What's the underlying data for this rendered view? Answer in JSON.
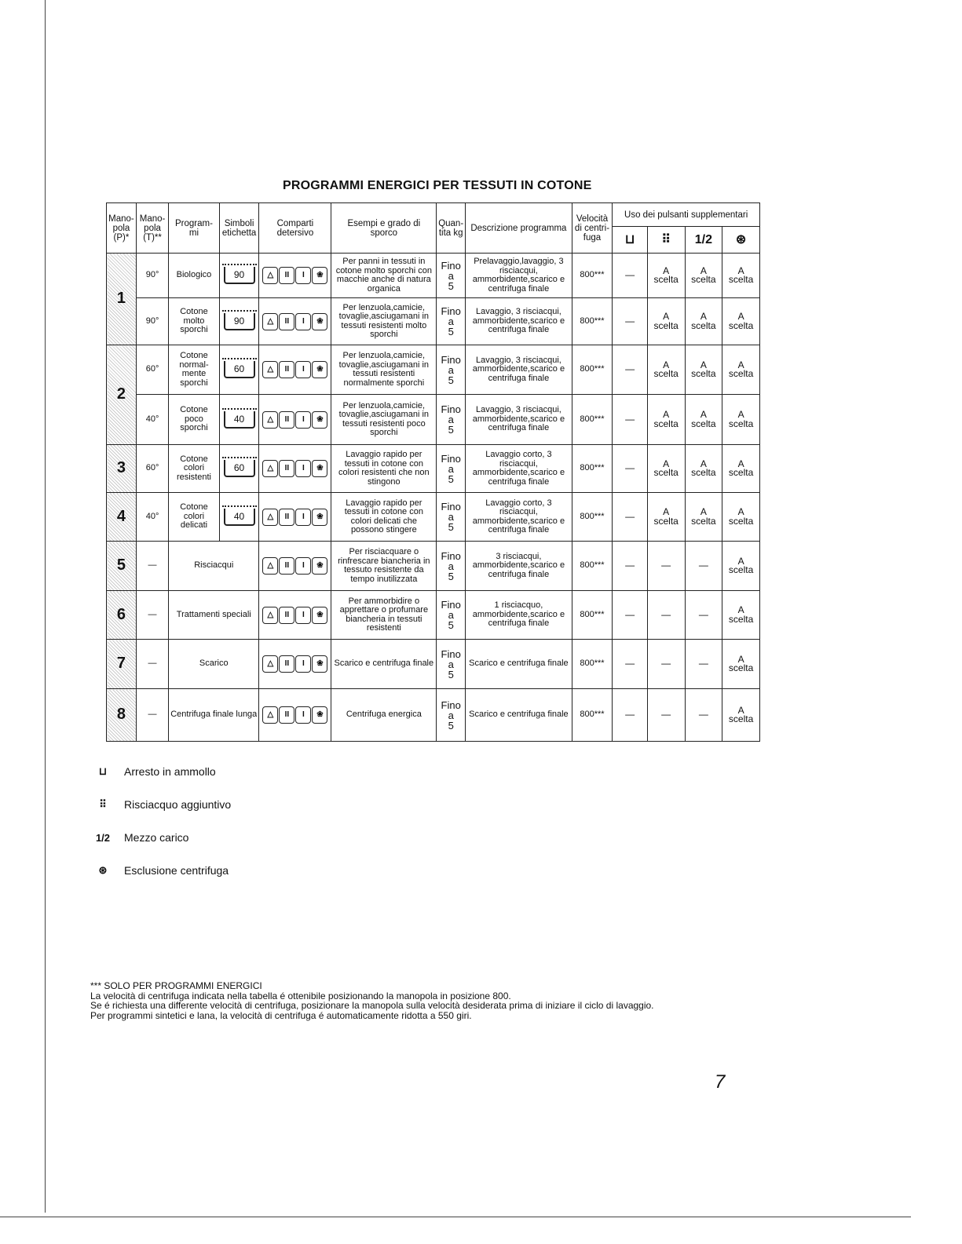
{
  "title": "PROGRAMMI ENERGICI PER TESSUTI IN COTONE",
  "headers": {
    "p": "Mano-pola (P)*",
    "t": "Mano-pola (T)**",
    "prog": "Program-mi",
    "simboli": "Simboli etichetta",
    "comparti": "Comparti detersivo",
    "esempi": "Esempi e grado di sporco",
    "quantita": "Quan-tita kg",
    "descrizione": "Descrizione programma",
    "velocita": "Velocità di centri-fuga",
    "pulsanti": "Uso dei pulsanti supplementari",
    "buttons": [
      "tub-icon",
      "extra-rinse-icon",
      "half-load-icon",
      "no-spin-icon"
    ],
    "button_glyphs": [
      "⊔",
      "⠿",
      "1/2",
      "⊛"
    ]
  },
  "compartments": [
    "△",
    "II",
    "I",
    "❀"
  ],
  "rows": [
    {
      "p": "1",
      "p_span": 2,
      "t": "90°",
      "prog": "Biologico",
      "sym": "90",
      "esempi": "Per panni in tessuti in cotone molto sporchi con macchie anche di natura organica",
      "qty": "Fino a 5",
      "desc": "Prelavaggio,lavaggio, 3 risciacqui, ammorbidente,scarico e centrifuga finale",
      "vel": "800***",
      "btn": [
        "—",
        "A scelta",
        "A scelta",
        "A scelta"
      ]
    },
    {
      "t": "90°",
      "prog": "Cotone molto sporchi",
      "sym": "90",
      "esempi": "Per lenzuola,camicie, tovaglie,asciugamani in tessuti resistenti molto sporchi",
      "qty": "Fino a 5",
      "desc": "Lavaggio, 3 risciacqui, ammorbidente,scarico e centrifuga finale",
      "vel": "800***",
      "btn": [
        "—",
        "A scelta",
        "A scelta",
        "A scelta"
      ]
    },
    {
      "p": "2",
      "p_span": 2,
      "t": "60°",
      "prog": "Cotone normal-mente sporchi",
      "sym": "60",
      "esempi": "Per lenzuola,camicie, tovaglie,asciugamani in tessuti resistenti normalmente sporchi",
      "qty": "Fino a 5",
      "desc": "Lavaggio, 3 risciacqui, ammorbidente,scarico e centrifuga finale",
      "vel": "800***",
      "btn": [
        "—",
        "A scelta",
        "A scelta",
        "A scelta"
      ]
    },
    {
      "t": "40°",
      "prog": "Cotone poco sporchi",
      "sym": "40",
      "esempi": "Per lenzuola,camicie, tovaglie,asciugamani in tessuti resistenti poco sporchi",
      "qty": "Fino a 5",
      "desc": "Lavaggio, 3 risciacqui, ammorbidente,scarico e centrifuga finale",
      "vel": "800***",
      "btn": [
        "—",
        "A scelta",
        "A scelta",
        "A scelta"
      ]
    },
    {
      "p": "3",
      "p_span": 1,
      "t": "60°",
      "prog": "Cotone colori resistenti",
      "sym": "60",
      "esempi": "Lavaggio rapido per tessuti in cotone con colori resistenti che non stingono",
      "qty": "Fino a 5",
      "desc": "Lavaggio corto, 3 risciacqui, ammorbidente,scarico e centrifuga finale",
      "vel": "800***",
      "btn": [
        "—",
        "A scelta",
        "A scelta",
        "A scelta"
      ]
    },
    {
      "p": "4",
      "p_span": 1,
      "t": "40°",
      "prog": "Cotone colori delicati",
      "sym": "40",
      "esempi": "Lavaggio rapido per tessuti in cotone con colori delicati che possono stingere",
      "qty": "Fino a 5",
      "desc": "Lavaggio corto, 3 risciacqui, ammorbidente,scarico e centrifuga finale",
      "vel": "800***",
      "btn": [
        "—",
        "A scelta",
        "A scelta",
        "A scelta"
      ]
    },
    {
      "p": "5",
      "p_span": 1,
      "t": "—",
      "prog": "Risciacqui",
      "esempi": "Per risciacquare o rinfrescare biancheria in tessuto resistente da tempo inutilizzata",
      "qty": "Fino a 5",
      "desc": "3 risciacqui, ammorbidente,scarico e centrifuga finale",
      "vel": "800***",
      "btn": [
        "—",
        "—",
        "—",
        "A scelta"
      ]
    },
    {
      "p": "6",
      "p_span": 1,
      "t": "—",
      "prog": "Trattamenti speciali",
      "esempi": "Per ammorbidire o apprettare o profumare biancheria in tessuti resistenti",
      "qty": "Fino a 5",
      "desc": "1 risciacquo, ammorbidente,scarico e centrifuga finale",
      "vel": "800***",
      "btn": [
        "—",
        "—",
        "—",
        "A scelta"
      ]
    },
    {
      "p": "7",
      "p_span": 1,
      "t": "—",
      "prog": "Scarico",
      "esempi": "Scarico e centrifuga finale",
      "qty": "Fino a 5",
      "desc": "Scarico e centrifuga finale",
      "vel": "800***",
      "btn": [
        "—",
        "—",
        "—",
        "A scelta"
      ]
    },
    {
      "p": "8",
      "p_span": 1,
      "t": "—",
      "prog": "Centrifuga finale lunga",
      "esempi": "Centrifuga energica",
      "qty": "Fino a 5",
      "desc": "Scarico e centrifuga finale",
      "vel": "800***",
      "btn": [
        "—",
        "—",
        "—",
        "A scelta"
      ]
    }
  ],
  "legend": [
    {
      "icon": "tub-icon",
      "glyph": "⊔",
      "label": "Arresto in  ammollo"
    },
    {
      "icon": "extra-rinse-icon",
      "glyph": "⠿",
      "label": "Risciacquo aggiuntivo"
    },
    {
      "icon": "half-load-icon",
      "glyph": "1/2",
      "label": "Mezzo carico"
    },
    {
      "icon": "no-spin-icon",
      "glyph": "⊛",
      "label": "Esclusione centrifuga"
    }
  ],
  "footnote": [
    "*** SOLO PER PROGRAMMI ENERGICI",
    "La velocità di centrifuga indicata nella tabella é ottenibile posizionando la manopola in posizione 800.",
    "Se é richiesta una differente velocità di centrifuga, posizionare la manopola sulla velocità desiderata prima di iniziare il ciclo di lavaggio.",
    "Per programmi sintetici e lana, la velocità di centrifuga é automaticamente ridotta a 550 giri."
  ],
  "page_number": "7"
}
